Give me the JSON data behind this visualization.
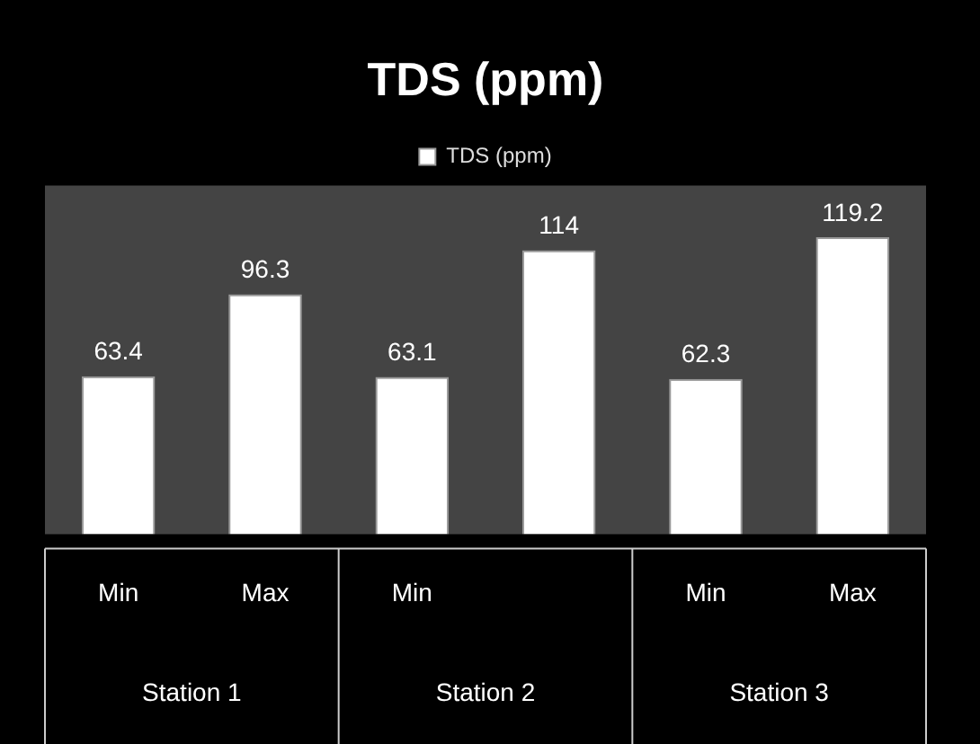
{
  "chart_data": {
    "type": "bar",
    "title": "TDS (ppm)",
    "categories": [
      "Min",
      "Max",
      "Min",
      null,
      "Min",
      "Max"
    ],
    "series": [
      {
        "name": "TDS (ppm)",
        "color": "#ffffff",
        "values": [
          63.4,
          96.3,
          63.1,
          114,
          62.3,
          119.2
        ]
      }
    ],
    "annotations": [
      "Station 1",
      "Station 2",
      "Station 3"
    ],
    "data_labels": true,
    "legend": "top",
    "grid": false
  }
}
